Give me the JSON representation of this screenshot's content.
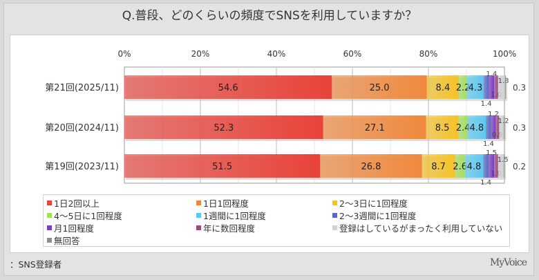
{
  "title": "Q.普段、どのくらいの頻度でSNSを利用していますか？",
  "footer": "：SNS登録者",
  "logo": "MyVoice",
  "chart_data": {
    "type": "bar",
    "orientation": "horizontal-stacked-100",
    "title": "Q.普段、どのくらいの頻度でSNSを利用していますか？",
    "categories": [
      "第21回(2025/11)",
      "第20回(2024/11)",
      "第19回(2023/11)"
    ],
    "xlim": [
      0,
      100
    ],
    "x_ticks": [
      "0%",
      "20%",
      "40%",
      "60%",
      "80%",
      "100%"
    ],
    "grid": true,
    "legend_placement": "bottom",
    "series": [
      {
        "name": "1日2回以上",
        "color": "#e8433a",
        "values": [
          54.6,
          52.3,
          51.5
        ]
      },
      {
        "name": "1日1回程度",
        "color": "#f0883c",
        "values": [
          25.0,
          27.1,
          26.8
        ]
      },
      {
        "name": "2～3日に1回程度",
        "color": "#f6c226",
        "values": [
          8.4,
          8.5,
          8.7
        ]
      },
      {
        "name": "4～5日に1回程度",
        "color": "#a3df5c",
        "values": [
          2.2,
          2.4,
          2.6
        ]
      },
      {
        "name": "1週間に1回程度",
        "color": "#5cc8f0",
        "values": [
          4.3,
          4.8,
          4.8
        ]
      },
      {
        "name": "2～3週間に1回程度",
        "color": "#5669c4",
        "values": [
          1.4,
          1.4,
          1.4
        ]
      },
      {
        "name": "月1回程度",
        "color": "#7a3bbf",
        "values": [
          1.4,
          1.2,
          1.5
        ]
      },
      {
        "name": "年に数回程度",
        "color": "#9b4a80",
        "values": [
          1.0,
          0.9,
          1.0
        ]
      },
      {
        "name": "登録はしているがまったく利用していない",
        "color": "#d2d2d2",
        "values": [
          1.8,
          1.2,
          1.5
        ]
      },
      {
        "name": "無回答",
        "color": "#8e8e8e",
        "values": [
          0.3,
          0.3,
          0.2
        ]
      }
    ]
  }
}
